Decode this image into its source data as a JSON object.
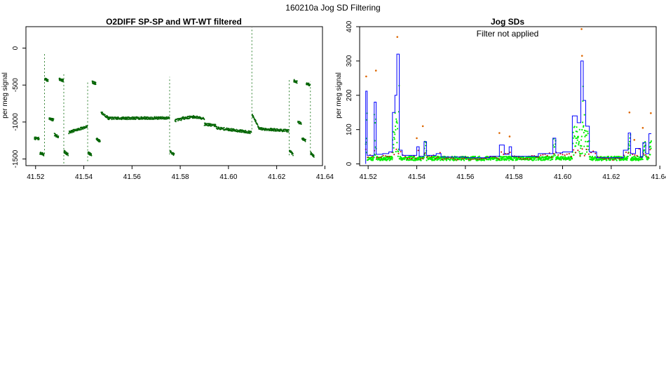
{
  "figure": {
    "suptitle": "160210a   Jog SD Filtering"
  },
  "chart_data": [
    {
      "type": "scatter",
      "title": "O2DIFF SP-SP and WT-WT filtered",
      "xlabel": "",
      "ylabel": "per meg signal",
      "xlim": [
        41.516,
        41.639
      ],
      "ylim": [
        -1590,
        290
      ],
      "x_ticks": [
        "41.52",
        "41.54",
        "41.56",
        "41.58",
        "41.60",
        "41.62",
        "41.64"
      ],
      "x_tick_values": [
        41.52,
        41.54,
        41.56,
        41.58,
        41.6,
        41.62,
        41.64
      ],
      "y_ticks": [
        "0",
        "-500",
        "-1000",
        "-1500"
      ],
      "y_tick_values": [
        0,
        -500,
        -1000,
        -1500
      ],
      "grid": false,
      "colors": {
        "points": "#006400"
      },
      "segments": [
        {
          "x": [
            41.5195,
            41.5215
          ],
          "y": [
            -1220,
            -1225
          ]
        },
        {
          "x": [
            41.5218,
            41.5235
          ],
          "y": [
            -1420,
            -1440
          ]
        },
        {
          "x": [
            41.5238,
            41.5252
          ],
          "y": [
            -420,
            -440
          ]
        },
        {
          "x": [
            41.5256,
            41.5275
          ],
          "y": [
            -950,
            -975
          ]
        },
        {
          "x": [
            41.5278,
            41.5295
          ],
          "y": [
            -1170,
            -1200
          ]
        },
        {
          "x": [
            41.5298,
            41.5315
          ],
          "y": [
            -420,
            -440
          ]
        },
        {
          "x": [
            41.5318,
            41.5335
          ],
          "y": [
            -1400,
            -1440
          ]
        },
        {
          "x": [
            41.5338,
            41.5415
          ],
          "y": [
            -1140,
            -1060
          ]
        },
        {
          "x": [
            41.5418,
            41.5432
          ],
          "y": [
            -1420,
            -1440
          ]
        },
        {
          "x": [
            41.5435,
            41.545
          ],
          "y": [
            -460,
            -480
          ]
        },
        {
          "x": [
            41.5452,
            41.5468
          ],
          "y": [
            -1230,
            -1260
          ]
        },
        {
          "x": [
            41.5472,
            41.55
          ],
          "y": [
            -870,
            -940
          ]
        },
        {
          "x": [
            41.55,
            41.5755
          ],
          "y": [
            -950,
            -945
          ]
        },
        {
          "x": [
            41.5758,
            41.5775
          ],
          "y": [
            -1400,
            -1440
          ]
        },
        {
          "x": [
            41.5778,
            41.5805
          ],
          "y": [
            -980,
            -960
          ]
        },
        {
          "x": [
            41.5805,
            41.5855
          ],
          "y": [
            -950,
            -930
          ]
        },
        {
          "x": [
            41.5855,
            41.59
          ],
          "y": [
            -930,
            -950
          ]
        },
        {
          "x": [
            41.59,
            41.595
          ],
          "y": [
            -1030,
            -1050
          ]
        },
        {
          "x": [
            41.595,
            41.6095
          ],
          "y": [
            -1080,
            -1140
          ]
        },
        {
          "x": [
            41.6098,
            41.6125
          ],
          "y": [
            -900,
            -1070
          ]
        },
        {
          "x": [
            41.6125,
            41.625
          ],
          "y": [
            -1090,
            -1120
          ]
        },
        {
          "x": [
            41.6253,
            41.6268
          ],
          "y": [
            -1380,
            -1440
          ]
        },
        {
          "x": [
            41.6271,
            41.6285
          ],
          "y": [
            -440,
            -460
          ]
        },
        {
          "x": [
            41.6288,
            41.6302
          ],
          "y": [
            -1000,
            -1020
          ]
        },
        {
          "x": [
            41.6305,
            41.632
          ],
          "y": [
            -1220,
            -1250
          ]
        },
        {
          "x": [
            41.6323,
            41.6338
          ],
          "y": [
            -480,
            -495
          ]
        },
        {
          "x": [
            41.6341,
            41.6355
          ],
          "y": [
            -1420,
            -1460
          ]
        }
      ],
      "spikes": [
        {
          "x": 41.5237,
          "y": [
            -1430,
            -80
          ]
        },
        {
          "x": 41.5317,
          "y": [
            -1560,
            -350
          ]
        },
        {
          "x": 41.5416,
          "y": [
            -1530,
            -450
          ]
        },
        {
          "x": 41.5756,
          "y": [
            -1440,
            -390
          ]
        },
        {
          "x": 41.6097,
          "y": [
            -1100,
            280
          ]
        },
        {
          "x": 41.6252,
          "y": [
            -1450,
            -420
          ]
        },
        {
          "x": 41.634,
          "y": [
            -1450,
            -450
          ]
        }
      ]
    },
    {
      "type": "step",
      "title": "Jog SDs",
      "annotation": "Filter not applied",
      "xlabel": "",
      "ylabel": "per meg signal",
      "xlim": [
        41.5165,
        41.6385
      ],
      "ylim": [
        -5,
        400
      ],
      "x_ticks": [
        "41.52",
        "41.54",
        "41.56",
        "41.58",
        "41.60",
        "41.62",
        "41.64"
      ],
      "x_tick_values": [
        41.52,
        41.54,
        41.56,
        41.58,
        41.6,
        41.62,
        41.64
      ],
      "y_ticks": [
        "0",
        "100",
        "200",
        "300",
        "400"
      ],
      "y_tick_values": [
        0,
        100,
        200,
        300,
        400
      ],
      "grid": false,
      "colors": {
        "step": "#0000ff",
        "points": "#00ee00",
        "red": "#cc0000",
        "orange": "#dd6600"
      },
      "step_series": [
        [
          41.519,
          212
        ],
        [
          41.5196,
          25
        ],
        [
          41.5225,
          180
        ],
        [
          41.5233,
          28
        ],
        [
          41.526,
          30
        ],
        [
          41.5285,
          35
        ],
        [
          41.53,
          150
        ],
        [
          41.531,
          200
        ],
        [
          41.5318,
          320
        ],
        [
          41.5328,
          40
        ],
        [
          41.534,
          25
        ],
        [
          41.54,
          50
        ],
        [
          41.541,
          22
        ],
        [
          41.543,
          65
        ],
        [
          41.544,
          25
        ],
        [
          41.548,
          30
        ],
        [
          41.55,
          20
        ],
        [
          41.56,
          18
        ],
        [
          41.57,
          22
        ],
        [
          41.574,
          55
        ],
        [
          41.576,
          28
        ],
        [
          41.578,
          50
        ],
        [
          41.579,
          22
        ],
        [
          41.585,
          22
        ],
        [
          41.59,
          30
        ],
        [
          41.596,
          75
        ],
        [
          41.5972,
          32
        ],
        [
          41.6,
          35
        ],
        [
          41.604,
          140
        ],
        [
          41.606,
          120
        ],
        [
          41.6075,
          300
        ],
        [
          41.6085,
          185
        ],
        [
          41.6095,
          110
        ],
        [
          41.611,
          35
        ],
        [
          41.614,
          18
        ],
        [
          41.625,
          40
        ],
        [
          41.627,
          90
        ],
        [
          41.628,
          30
        ],
        [
          41.63,
          45
        ],
        [
          41.632,
          20
        ],
        [
          41.633,
          62
        ],
        [
          41.6342,
          30
        ],
        [
          41.6355,
          88
        ],
        [
          41.6365,
          88
        ]
      ],
      "orange_points": [
        [
          41.5192,
          255
        ],
        [
          41.5232,
          272
        ],
        [
          41.532,
          370
        ],
        [
          41.54,
          75
        ],
        [
          41.5425,
          110
        ],
        [
          41.574,
          90
        ],
        [
          41.5782,
          80
        ],
        [
          41.6078,
          393
        ],
        [
          41.608,
          315
        ],
        [
          41.6275,
          150
        ],
        [
          41.6295,
          70
        ],
        [
          41.633,
          105
        ],
        [
          41.6363,
          148
        ]
      ]
    }
  ]
}
